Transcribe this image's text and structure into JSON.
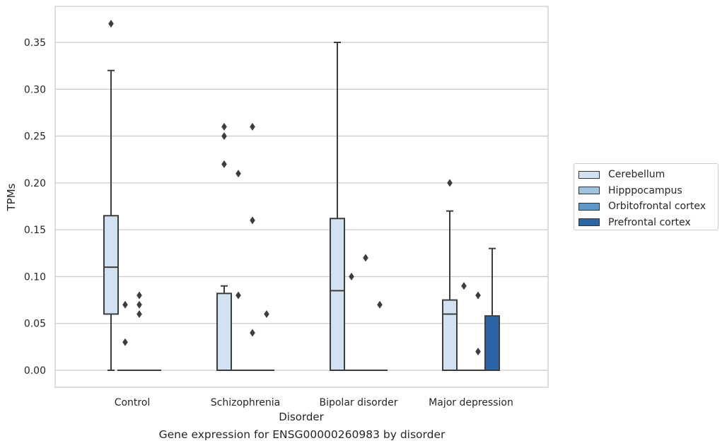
{
  "caption": "Gene expression for ENSG00000260983 by disorder",
  "chart_data": {
    "type": "boxplot",
    "xlabel": "Disorder",
    "ylabel": "TPMs",
    "ylim": [
      -0.018,
      0.388
    ],
    "yticks": [
      "0.00",
      "0.05",
      "0.10",
      "0.15",
      "0.20",
      "0.25",
      "0.30",
      "0.35"
    ],
    "grid": true,
    "legend_position": "right",
    "categories": [
      "Control",
      "Schizophrenia",
      "Bipolar disorder",
      "Major depression"
    ],
    "series": [
      {
        "name": "Cerebellum",
        "color": "#d3e2f1",
        "boxes": [
          {
            "whisker_low": 0.0,
            "q1": 0.06,
            "median": 0.11,
            "q3": 0.165,
            "whisker_high": 0.32,
            "outliers": [
              0.37
            ]
          },
          {
            "whisker_low": 0.0,
            "q1": 0.0,
            "median": 0.0,
            "q3": 0.082,
            "whisker_high": 0.09,
            "outliers": [
              0.22,
              0.25,
              0.26
            ]
          },
          {
            "whisker_low": 0.0,
            "q1": 0.0,
            "median": 0.085,
            "q3": 0.162,
            "whisker_high": 0.35,
            "outliers": []
          },
          {
            "whisker_low": 0.0,
            "q1": 0.0,
            "median": 0.06,
            "q3": 0.075,
            "whisker_high": 0.17,
            "outliers": [
              0.2
            ]
          }
        ]
      },
      {
        "name": "Hipppocampus",
        "color": "#9dc4df",
        "boxes": [
          {
            "whisker_low": 0.0,
            "q1": 0.0,
            "median": 0.0,
            "q3": 0.0,
            "whisker_high": 0.0,
            "outliers": [
              0.03,
              0.07
            ]
          },
          {
            "whisker_low": 0.0,
            "q1": 0.0,
            "median": 0.0,
            "q3": 0.0,
            "whisker_high": 0.0,
            "outliers": [
              0.08,
              0.21
            ]
          },
          {
            "whisker_low": 0.0,
            "q1": 0.0,
            "median": 0.0,
            "q3": 0.0,
            "whisker_high": 0.0,
            "outliers": [
              0.1
            ]
          },
          {
            "whisker_low": 0.0,
            "q1": 0.0,
            "median": 0.0,
            "q3": 0.0,
            "whisker_high": 0.0,
            "outliers": [
              0.09
            ]
          }
        ]
      },
      {
        "name": "Orbitofrontal cortex",
        "color": "#5b9ac8",
        "boxes": [
          {
            "whisker_low": 0.0,
            "q1": 0.0,
            "median": 0.0,
            "q3": 0.0,
            "whisker_high": 0.0,
            "outliers": [
              0.06,
              0.07,
              0.08
            ]
          },
          {
            "whisker_low": 0.0,
            "q1": 0.0,
            "median": 0.0,
            "q3": 0.0,
            "whisker_high": 0.0,
            "outliers": [
              0.04,
              0.16,
              0.26
            ]
          },
          {
            "whisker_low": 0.0,
            "q1": 0.0,
            "median": 0.0,
            "q3": 0.0,
            "whisker_high": 0.0,
            "outliers": [
              0.12
            ]
          },
          {
            "whisker_low": 0.0,
            "q1": 0.0,
            "median": 0.0,
            "q3": 0.0,
            "whisker_high": 0.0,
            "outliers": [
              0.02,
              0.08
            ]
          }
        ]
      },
      {
        "name": "Prefrontal cortex",
        "color": "#2a66a6",
        "boxes": [
          {
            "whisker_low": 0.0,
            "q1": 0.0,
            "median": 0.0,
            "q3": 0.0,
            "whisker_high": 0.0,
            "outliers": []
          },
          {
            "whisker_low": 0.0,
            "q1": 0.0,
            "median": 0.0,
            "q3": 0.0,
            "whisker_high": 0.0,
            "outliers": [
              0.06
            ]
          },
          {
            "whisker_low": 0.0,
            "q1": 0.0,
            "median": 0.0,
            "q3": 0.0,
            "whisker_high": 0.0,
            "outliers": [
              0.07
            ]
          },
          {
            "whisker_low": 0.0,
            "q1": 0.0,
            "median": 0.0,
            "q3": 0.058,
            "whisker_high": 0.13,
            "outliers": []
          }
        ]
      }
    ]
  }
}
